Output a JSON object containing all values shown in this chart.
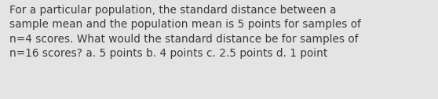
{
  "text": "For a particular population, the standard distance between a\nsample mean and the population mean is 5 points for samples of\nn=4 scores. What would the standard distance be for samples of\nn=16 scores? a. 5 points b. 4 points c. 2.5 points d. 1 point",
  "background_color": "#e4e4e4",
  "text_color": "#3a3a3a",
  "font_size": 9.8,
  "fig_width": 5.58,
  "fig_height": 1.26,
  "dpi": 100
}
